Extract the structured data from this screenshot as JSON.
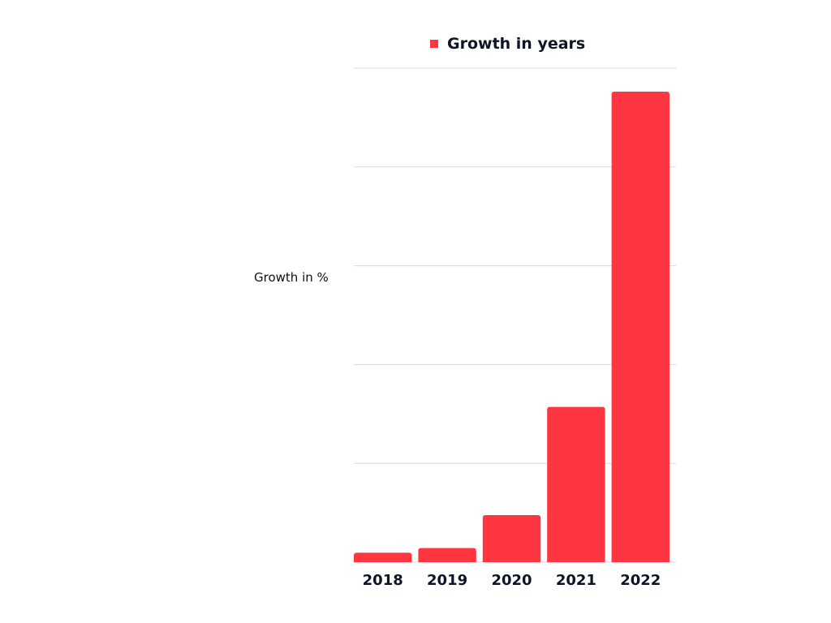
{
  "chart_data": {
    "type": "bar",
    "categories": [
      "2018",
      "2019",
      "2020",
      "2021",
      "2022"
    ],
    "series": [
      {
        "name": "Growth in years",
        "values": [
          2,
          3,
          10,
          33,
          100
        ],
        "color": "#fe3642"
      }
    ],
    "title": "",
    "xlabel": "",
    "ylabel": "Growth in %",
    "ylim": [
      0,
      105
    ],
    "y_ticks_labeled": false,
    "grid": true,
    "legend": "top-center"
  }
}
